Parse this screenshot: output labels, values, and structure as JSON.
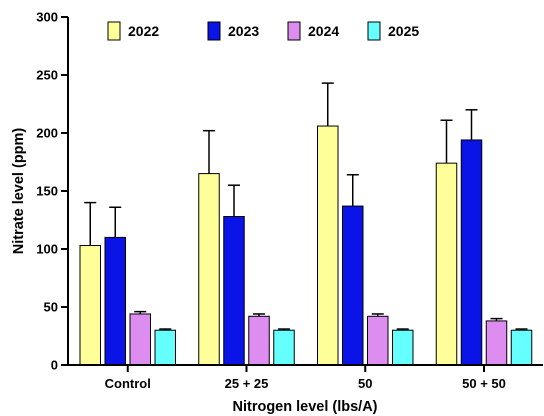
{
  "chart_data": {
    "type": "bar",
    "xlabel": "Nitrogen level (lbs/A)",
    "ylabel": "Nitrate level (ppm)",
    "ylim": [
      0,
      300
    ],
    "yticks": [
      0,
      50,
      100,
      150,
      200,
      250,
      300
    ],
    "yticks_labels": [
      "0",
      "50",
      "100",
      "150",
      "200",
      "250",
      "300"
    ],
    "categories": [
      "Control",
      "25 + 25",
      "50",
      "50 + 50"
    ],
    "legend_position": "top",
    "error_bars": true,
    "grid": false,
    "series": [
      {
        "name": "2022",
        "color": "#ffff99",
        "values": [
          103,
          165,
          206,
          174
        ],
        "errors": [
          37,
          37,
          37,
          37
        ]
      },
      {
        "name": "2023",
        "color": "#0a14e6",
        "values": [
          110,
          128,
          137,
          194
        ],
        "errors": [
          26,
          27,
          27,
          26
        ]
      },
      {
        "name": "2024",
        "color": "#dd8cf0",
        "values": [
          44,
          42,
          42,
          38
        ],
        "errors": [
          2,
          2,
          2,
          2
        ]
      },
      {
        "name": "2025",
        "color": "#66ffff",
        "values": [
          30,
          30,
          30,
          30
        ],
        "errors": [
          1,
          1,
          1,
          1
        ]
      }
    ]
  }
}
